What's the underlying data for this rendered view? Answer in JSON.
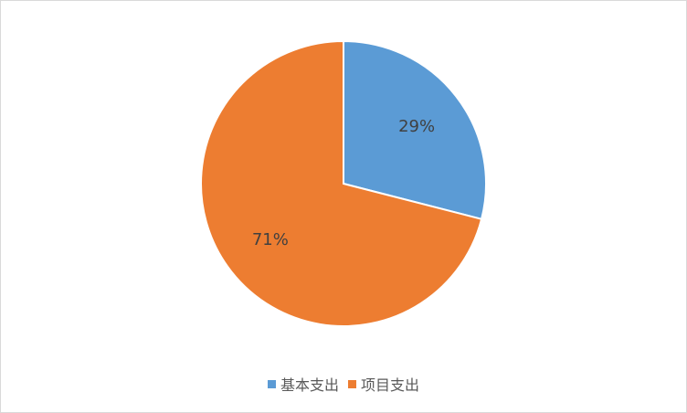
{
  "chart_data": {
    "type": "pie",
    "categories": [
      "基本支出",
      "项目支出"
    ],
    "values": [
      29,
      71
    ],
    "data_labels": [
      "29%",
      "71%"
    ],
    "colors": [
      "#5B9BD5",
      "#ED7D31"
    ],
    "title": "",
    "legend_placement": "bottom"
  }
}
